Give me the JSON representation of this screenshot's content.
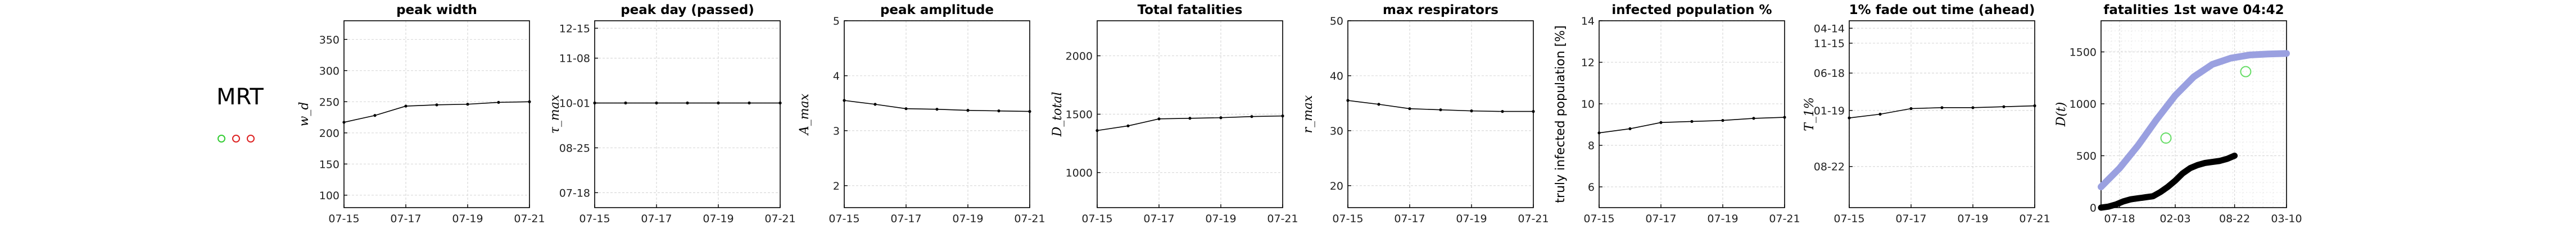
{
  "country": {
    "label": "MRT",
    "markers": [
      "#33cc33",
      "#dd2222",
      "#dd2222"
    ]
  },
  "chart_data": [
    {
      "type": "line",
      "title": "peak width",
      "ylabel": "w_d",
      "ylim": [
        80,
        380
      ],
      "yticks": [
        100,
        150,
        200,
        250,
        300,
        350
      ],
      "yticklabels": [
        "100",
        "150",
        "200",
        "250",
        "300",
        "350"
      ],
      "xlim": [
        0,
        6
      ],
      "xticks": [
        0,
        2,
        4,
        6
      ],
      "xticklabels": [
        "07-15",
        "07-17",
        "07-19",
        "07-21"
      ],
      "x": [
        0,
        1,
        2,
        3,
        4,
        5,
        6
      ],
      "y": [
        217,
        228,
        243,
        245,
        246,
        249,
        250
      ]
    },
    {
      "type": "line",
      "title": "peak day (passed)",
      "ylabel": "τ_max",
      "ylim": [
        0,
        100
      ],
      "yticks": [
        8,
        32,
        56,
        80,
        96
      ],
      "yticklabels": [
        "07-18",
        "08-25",
        "10-01",
        "11-08",
        "12-15"
      ],
      "xlim": [
        0,
        6
      ],
      "xticks": [
        0,
        2,
        4,
        6
      ],
      "xticklabels": [
        "07-15",
        "07-17",
        "07-19",
        "07-21"
      ],
      "x": [
        0,
        1,
        2,
        3,
        4,
        5,
        6
      ],
      "y": [
        56,
        56,
        56,
        56,
        56,
        56,
        56
      ]
    },
    {
      "type": "line",
      "title": "peak amplitude",
      "ylabel": "A_max",
      "ylim": [
        1.6,
        5
      ],
      "yticks": [
        2,
        3,
        4,
        5
      ],
      "yticklabels": [
        "2",
        "3",
        "4",
        "5"
      ],
      "xlim": [
        0,
        6
      ],
      "xticks": [
        0,
        2,
        4,
        6
      ],
      "xticklabels": [
        "07-15",
        "07-17",
        "07-19",
        "07-21"
      ],
      "x": [
        0,
        1,
        2,
        3,
        4,
        5,
        6
      ],
      "y": [
        3.55,
        3.48,
        3.4,
        3.39,
        3.37,
        3.36,
        3.35
      ]
    },
    {
      "type": "line",
      "title": "Total fatalities",
      "ylabel": "D_total",
      "ylim": [
        700,
        2300
      ],
      "yticks": [
        1000,
        1500,
        2000
      ],
      "yticklabels": [
        "1000",
        "1500",
        "2000"
      ],
      "xlim": [
        0,
        6
      ],
      "xticks": [
        0,
        2,
        4,
        6
      ],
      "xticklabels": [
        "07-15",
        "07-17",
        "07-19",
        "07-21"
      ],
      "x": [
        0,
        1,
        2,
        3,
        4,
        5,
        6
      ],
      "y": [
        1360,
        1400,
        1460,
        1465,
        1470,
        1480,
        1485
      ]
    },
    {
      "type": "line",
      "title": "max respirators",
      "ylabel": "r_max",
      "ylim": [
        16,
        50
      ],
      "yticks": [
        20,
        30,
        40,
        50
      ],
      "yticklabels": [
        "20",
        "30",
        "40",
        "50"
      ],
      "xlim": [
        0,
        6
      ],
      "xticks": [
        0,
        2,
        4,
        6
      ],
      "xticklabels": [
        "07-15",
        "07-17",
        "07-19",
        "07-21"
      ],
      "x": [
        0,
        1,
        2,
        3,
        4,
        5,
        6
      ],
      "y": [
        35.5,
        34.8,
        34,
        33.8,
        33.6,
        33.5,
        33.5
      ]
    },
    {
      "type": "line",
      "title": "infected population %",
      "ylabel": "truly infected population [%]",
      "ylim": [
        5,
        14
      ],
      "yticks": [
        6,
        8,
        10,
        12,
        14
      ],
      "yticklabels": [
        "6",
        "8",
        "10",
        "12",
        "14"
      ],
      "xlim": [
        0,
        6
      ],
      "xticks": [
        0,
        2,
        4,
        6
      ],
      "xticklabels": [
        "07-15",
        "07-17",
        "07-19",
        "07-21"
      ],
      "x": [
        0,
        1,
        2,
        3,
        4,
        5,
        6
      ],
      "y": [
        8.6,
        8.8,
        9.1,
        9.15,
        9.2,
        9.3,
        9.35
      ]
    },
    {
      "type": "line",
      "title": "1% fade out time (ahead)",
      "ylabel": "T_1%",
      "ylim": [
        0,
        100
      ],
      "yticks": [
        22,
        52,
        72,
        88,
        96
      ],
      "yticklabels": [
        "08-22",
        "01-19",
        "06-18",
        "11-15",
        "04-14"
      ],
      "xlim": [
        0,
        6
      ],
      "xticks": [
        0,
        2,
        4,
        6
      ],
      "xticklabels": [
        "07-15",
        "07-17",
        "07-19",
        "07-21"
      ],
      "x": [
        0,
        1,
        2,
        3,
        4,
        5,
        6
      ],
      "y": [
        48,
        50,
        53,
        53.5,
        53.5,
        54,
        54.5
      ]
    },
    {
      "type": "line",
      "title": "fatalities 1st wave 04:42",
      "ylabel": "D(t)",
      "ylim": [
        0,
        1800
      ],
      "yticks": [
        0,
        500,
        1000,
        1500
      ],
      "yticklabels": [
        "0",
        "500",
        "1000",
        "1500"
      ],
      "xlim": [
        0,
        1
      ],
      "xticks": [
        0.1,
        0.4,
        0.72,
        1.0
      ],
      "xticklabels": [
        "07-18",
        "02-03",
        "08-22",
        "03-10"
      ],
      "series": [
        {
          "color": "#9aa0e0",
          "x": [
            0,
            0.1,
            0.2,
            0.3,
            0.4,
            0.5,
            0.6,
            0.7,
            0.8,
            0.9,
            1.0
          ],
          "y": [
            200,
            380,
            600,
            850,
            1080,
            1260,
            1380,
            1440,
            1470,
            1480,
            1485
          ]
        },
        {
          "color": "#000000",
          "x": [
            0,
            0.04,
            0.08,
            0.12,
            0.16,
            0.2,
            0.24,
            0.28,
            0.32,
            0.36,
            0.4,
            0.44,
            0.48,
            0.52,
            0.56,
            0.6,
            0.64,
            0.68,
            0.72
          ],
          "y": [
            0,
            10,
            30,
            60,
            80,
            90,
            100,
            110,
            150,
            200,
            260,
            330,
            380,
            410,
            430,
            440,
            450,
            470,
            500
          ]
        }
      ],
      "points": [
        {
          "color": "#66dd66",
          "x": 0.35,
          "y": 670
        },
        {
          "color": "#66dd66",
          "x": 0.78,
          "y": 1310
        }
      ]
    }
  ]
}
